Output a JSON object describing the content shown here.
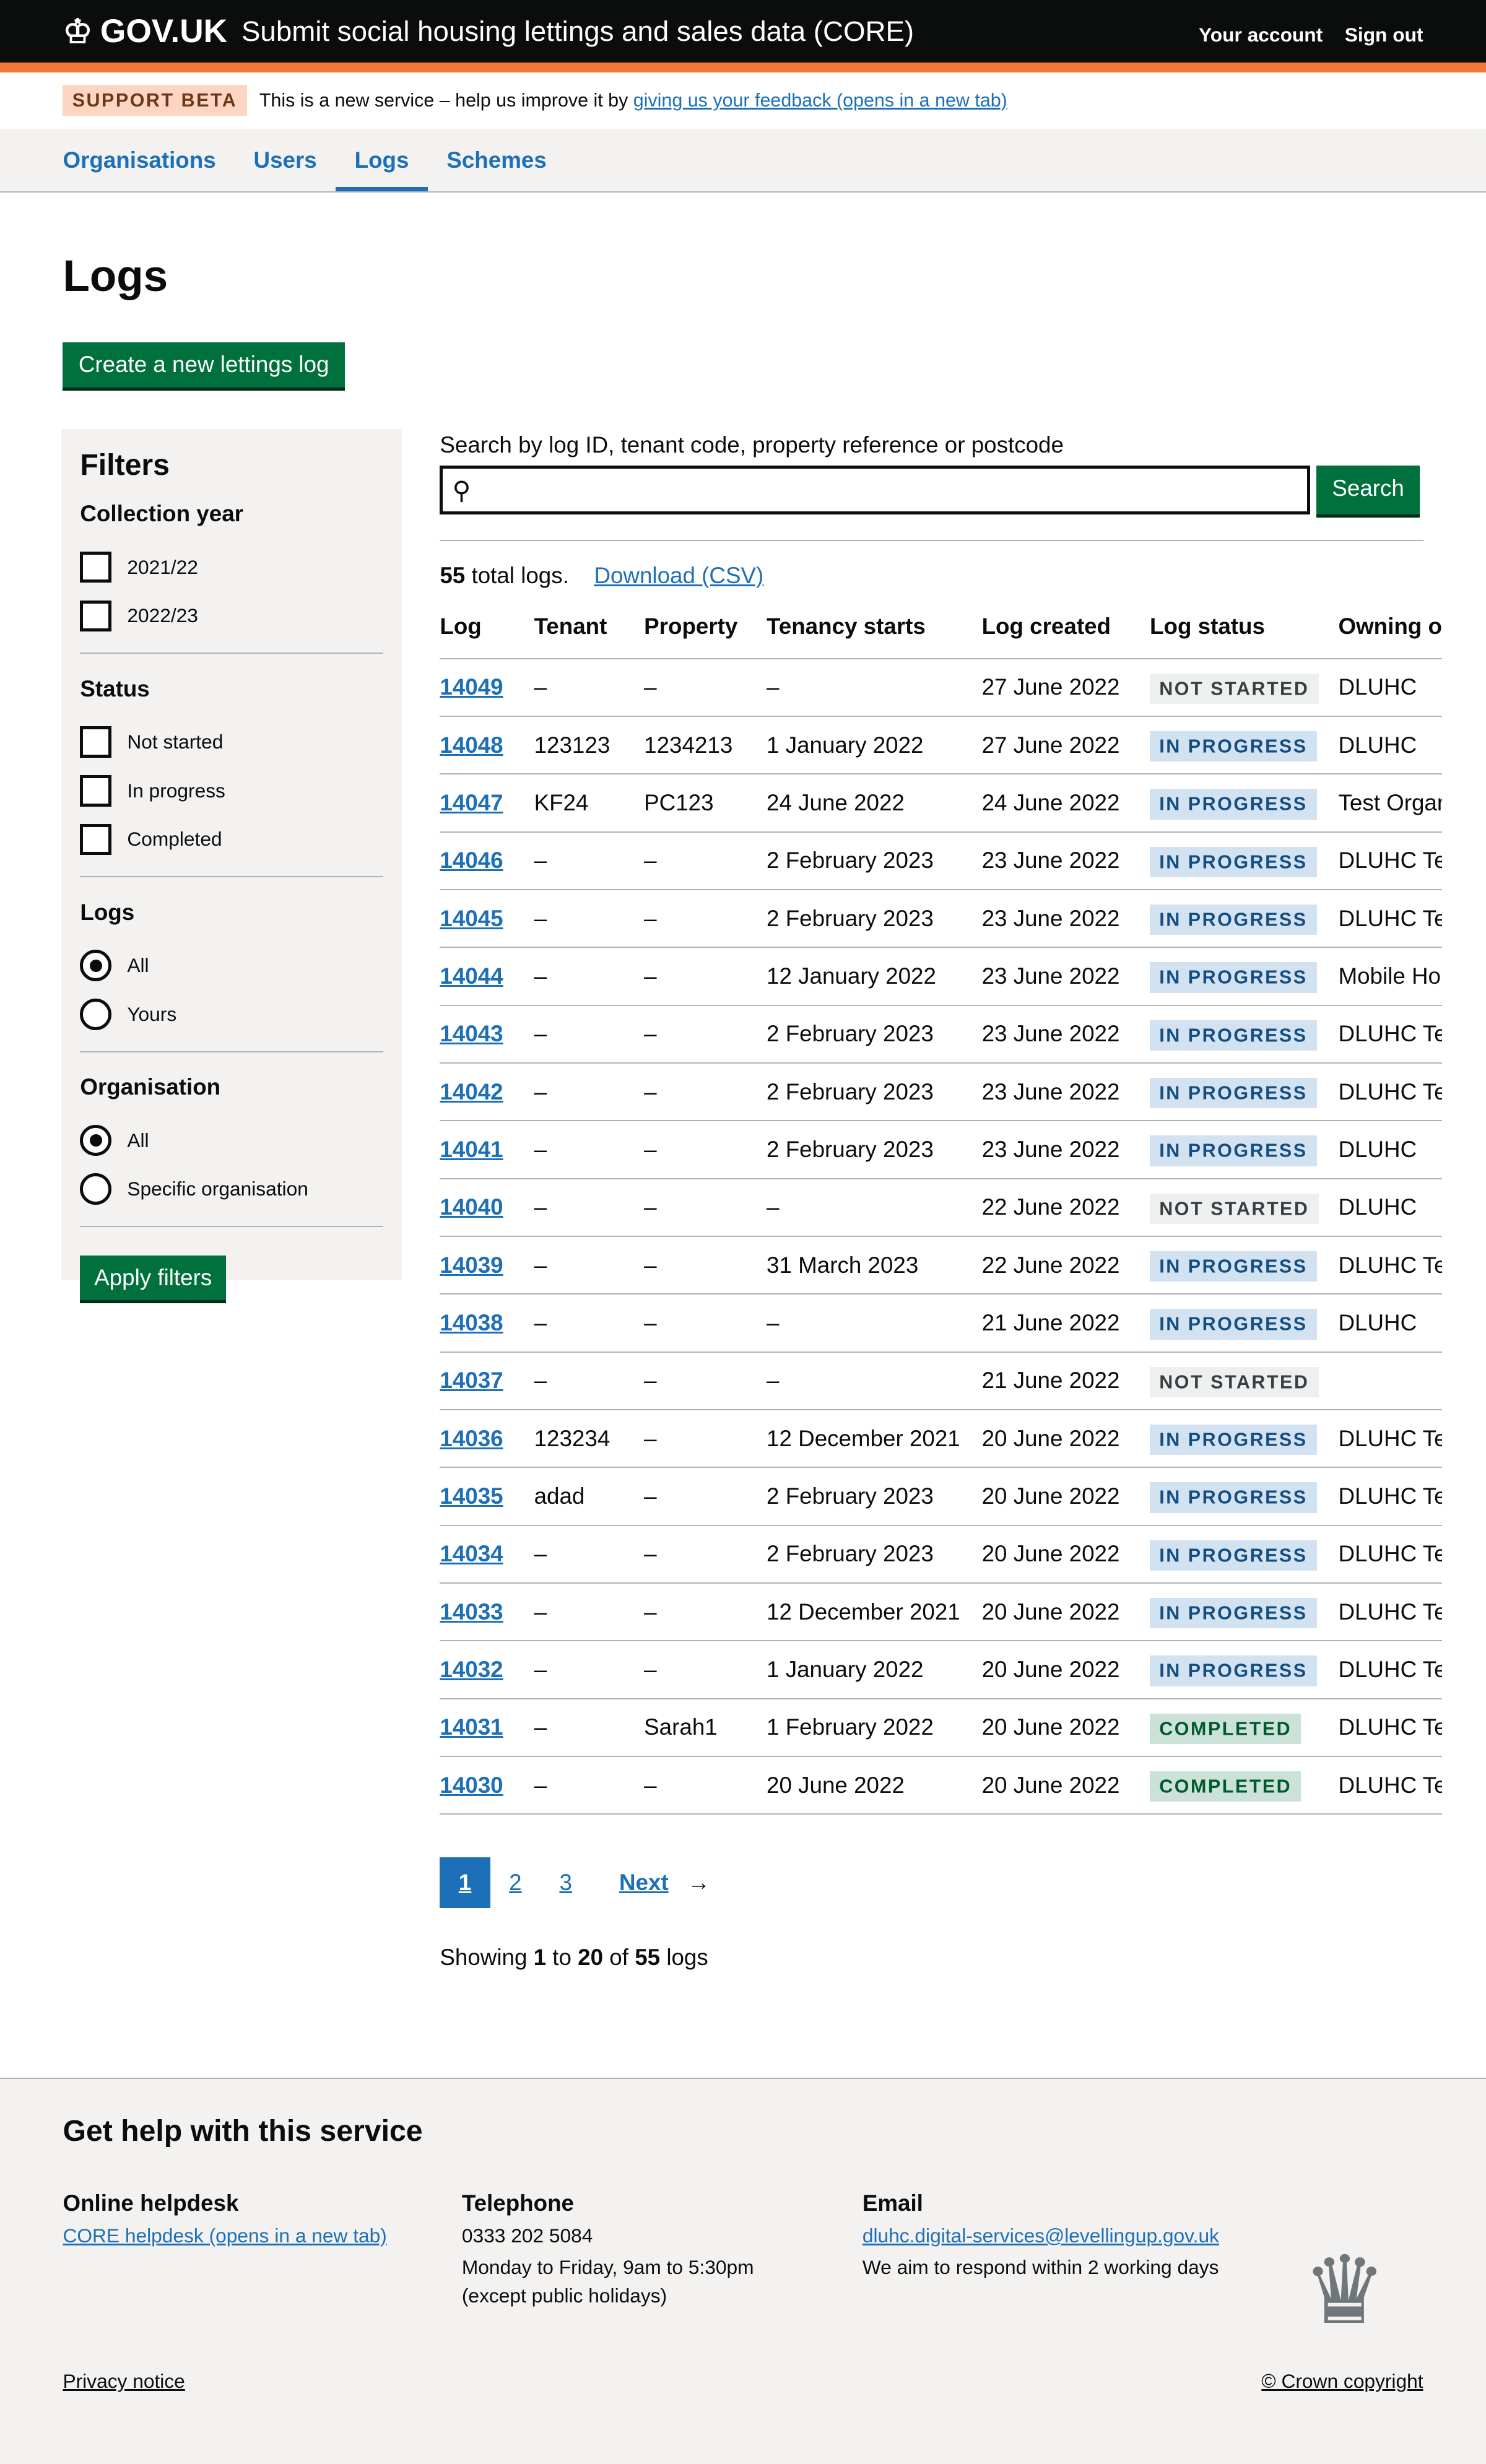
{
  "header": {
    "logo": "GOV.UK",
    "service": "Submit social housing lettings and sales data (CORE)",
    "account": "Your account",
    "signout": "Sign out"
  },
  "beta": {
    "tag": "SUPPORT BETA",
    "text": "This is a new service – help us improve it by",
    "link": "giving us your feedback (opens in a new tab)"
  },
  "nav": [
    "Organisations",
    "Users",
    "Logs",
    "Schemes"
  ],
  "title": "Logs",
  "create": "Create a new lettings log",
  "filters": {
    "title": "Filters",
    "year": {
      "label": "Collection year",
      "options": [
        "2021/22",
        "2022/23"
      ]
    },
    "status": {
      "label": "Status",
      "options": [
        "Not started",
        "In progress",
        "Completed"
      ]
    },
    "logs": {
      "label": "Logs",
      "options": [
        "All",
        "Yours"
      ]
    },
    "org": {
      "label": "Organisation",
      "options": [
        "All",
        "Specific organisation"
      ]
    },
    "apply": "Apply filters"
  },
  "search": {
    "label": "Search by log ID, tenant code, property reference or postcode",
    "value": "",
    "button": "Search"
  },
  "summary": {
    "count": "55",
    "text": "total logs.",
    "download": "Download (CSV)"
  },
  "columns": [
    "Log",
    "Tenant",
    "Property",
    "Tenancy starts",
    "Log created",
    "Log status",
    "Owning or"
  ],
  "rows": [
    [
      "14049",
      "–",
      "–",
      "–",
      "27 June 2022",
      "NOT STARTED",
      "DLUHC"
    ],
    [
      "14048",
      "123123",
      "1234213",
      "1 January 2022",
      "27 June 2022",
      "IN PROGRESS",
      "DLUHC"
    ],
    [
      "14047",
      "KF24",
      "PC123",
      "24 June 2022",
      "24 June 2022",
      "IN PROGRESS",
      "Test Organ"
    ],
    [
      "14046",
      "–",
      "–",
      "2 February 2023",
      "23 June 2022",
      "IN PROGRESS",
      "DLUHC Tes"
    ],
    [
      "14045",
      "–",
      "–",
      "2 February 2023",
      "23 June 2022",
      "IN PROGRESS",
      "DLUHC Tes"
    ],
    [
      "14044",
      "–",
      "–",
      "12 January 2022",
      "23 June 2022",
      "IN PROGRESS",
      "Mobile Hou"
    ],
    [
      "14043",
      "–",
      "–",
      "2 February 2023",
      "23 June 2022",
      "IN PROGRESS",
      "DLUHC Tes"
    ],
    [
      "14042",
      "–",
      "–",
      "2 February 2023",
      "23 June 2022",
      "IN PROGRESS",
      "DLUHC Tes"
    ],
    [
      "14041",
      "–",
      "–",
      "2 February 2023",
      "23 June 2022",
      "IN PROGRESS",
      "DLUHC"
    ],
    [
      "14040",
      "–",
      "–",
      "–",
      "22 June 2022",
      "NOT STARTED",
      "DLUHC"
    ],
    [
      "14039",
      "–",
      "–",
      "31 March 2023",
      "22 June 2022",
      "IN PROGRESS",
      "DLUHC Tes"
    ],
    [
      "14038",
      "–",
      "–",
      "–",
      "21 June 2022",
      "IN PROGRESS",
      "DLUHC"
    ],
    [
      "14037",
      "–",
      "–",
      "–",
      "21 June 2022",
      "NOT STARTED",
      ""
    ],
    [
      "14036",
      "123234",
      "–",
      "12 December 2021",
      "20 June 2022",
      "IN PROGRESS",
      "DLUHC Tes"
    ],
    [
      "14035",
      "adad",
      "–",
      "2 February 2023",
      "20 June 2022",
      "IN PROGRESS",
      "DLUHC Tes"
    ],
    [
      "14034",
      "–",
      "–",
      "2 February 2023",
      "20 June 2022",
      "IN PROGRESS",
      "DLUHC Tes"
    ],
    [
      "14033",
      "–",
      "–",
      "12 December 2021",
      "20 June 2022",
      "IN PROGRESS",
      "DLUHC Tes"
    ],
    [
      "14032",
      "–",
      "–",
      "1 January 2022",
      "20 June 2022",
      "IN PROGRESS",
      "DLUHC Tes"
    ],
    [
      "14031",
      "–",
      "Sarah1",
      "1 February 2022",
      "20 June 2022",
      "COMPLETED",
      "DLUHC Tes"
    ],
    [
      "14030",
      "–",
      "–",
      "20 June 2022",
      "20 June 2022",
      "COMPLETED",
      "DLUHC Tes"
    ]
  ],
  "pagination": {
    "pages": [
      "1",
      "2",
      "3"
    ],
    "current": "1",
    "next": "Next"
  },
  "showing": {
    "a": "Showing",
    "from": "1",
    "to_word": "to",
    "to": "20",
    "of_word": "of",
    "total": "55",
    "logs": "logs"
  },
  "footer": {
    "title": "Get help with this service",
    "helpdesk": {
      "title": "Online helpdesk",
      "link": "CORE helpdesk (opens in a new tab)"
    },
    "phone": {
      "title": "Telephone",
      "number": "0333 202 5084",
      "hours": "Monday to Friday, 9am to 5:30pm",
      "note": "(except public holidays)"
    },
    "email": {
      "title": "Email",
      "address": "dluhc.digital-services@levellingup.gov.uk",
      "note": "We aim to respond within 2 working days"
    },
    "privacy": "Privacy notice",
    "copyright": "© Crown copyright"
  }
}
